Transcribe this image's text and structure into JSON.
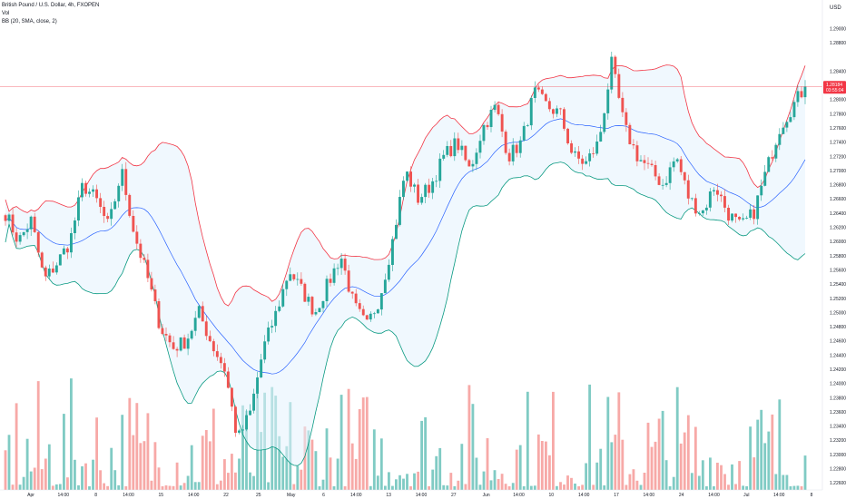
{
  "header": {
    "symbol": "British Pound / U.S. Dollar, 4h, FXOPEN",
    "volume_label": "Vol",
    "indicator_label": "BB (20, SMA, close, 2)"
  },
  "price_axis": {
    "currency": "USD",
    "current_price": "1.28184",
    "current_label": "03:55:04"
  },
  "colors": {
    "up": "#26a69a",
    "down": "#ef5350",
    "bb_upper": "#f23645",
    "bb_lower": "#089981",
    "bb_basis": "#2962ff",
    "bb_fill": "#e3f2fd",
    "price_line": "#f23645",
    "vol_up": "#80cbc4",
    "vol_down": "#f7a9a7"
  },
  "chart_data": {
    "type": "candlestick",
    "title": "British Pound / U.S. Dollar, 4h, FXOPEN",
    "ylabel": "USD",
    "ylim": [
      1.225,
      1.293
    ],
    "y_ticks": [
      "1.29000",
      "1.28800",
      "1.28400",
      "1.28200",
      "1.28000",
      "1.27800",
      "1.27600",
      "1.27400",
      "1.27200",
      "1.27000",
      "1.26800",
      "1.26600",
      "1.26400",
      "1.26200",
      "1.26000",
      "1.25800",
      "1.25600",
      "1.25400",
      "1.25200",
      "1.25000",
      "1.24800",
      "1.24600",
      "1.24400",
      "1.24200",
      "1.24000",
      "1.23800",
      "1.23600",
      "1.23400",
      "1.23200",
      "1.23000",
      "1.22800",
      "1.22600"
    ],
    "x_ticks": [
      "Apr",
      "14:00",
      "8",
      "14:00",
      "15",
      "14:00",
      "22",
      "25",
      "May",
      "6",
      "14:00",
      "13",
      "14:00",
      "27",
      "Jun",
      "14:00",
      "10",
      "14:00",
      "17",
      "14:00",
      "24",
      "14:00",
      "Jul",
      "14:00",
      "8"
    ],
    "bollinger": {
      "period": 20,
      "ma": "SMA",
      "source": "close",
      "stddev": 2
    },
    "close_path": [
      1.264,
      1.26,
      1.263,
      1.2545,
      1.257,
      1.26,
      1.268,
      1.266,
      1.262,
      1.27,
      1.261,
      1.255,
      1.248,
      1.245,
      1.246,
      1.25,
      1.2455,
      1.242,
      1.232,
      1.236,
      1.245,
      1.25,
      1.256,
      1.253,
      1.25,
      1.254,
      1.258,
      1.251,
      1.248,
      1.252,
      1.26,
      1.27,
      1.266,
      1.268,
      1.272,
      1.274,
      1.27,
      1.276,
      1.279,
      1.272,
      1.274,
      1.281,
      1.279,
      1.278,
      1.272,
      1.271,
      1.274,
      1.285,
      1.276,
      1.272,
      1.27,
      1.268,
      1.272,
      1.266,
      1.264,
      1.268,
      1.264,
      1.262,
      1.264,
      1.27,
      1.276,
      1.279,
      1.2818
    ],
    "volume_max": 0.45
  }
}
